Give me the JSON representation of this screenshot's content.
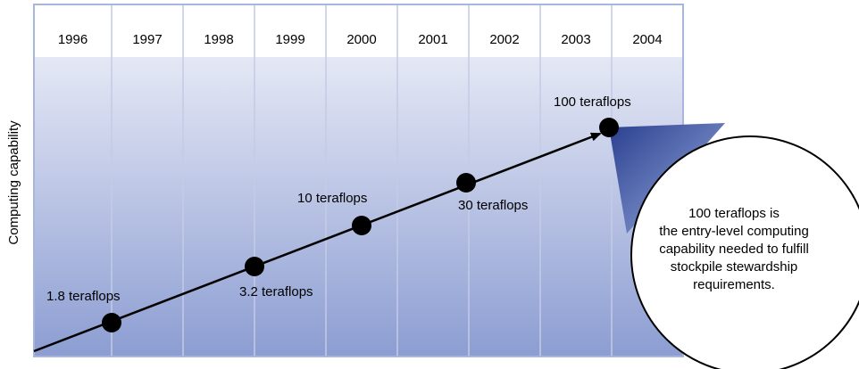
{
  "y_axis_label": "Computing capability",
  "years": [
    "1996",
    "1997",
    "1998",
    "1999",
    "2000",
    "2001",
    "2002",
    "2003",
    "2004"
  ],
  "milestones": [
    {
      "label": "1.8 teraflops"
    },
    {
      "label": "3.2 teraflops"
    },
    {
      "label": "10 teraflops"
    },
    {
      "label": "30 teraflops"
    },
    {
      "label": "100 teraflops"
    }
  ],
  "callout": {
    "lines": [
      "100 teraflops  is",
      "the entry-level computing",
      "capability needed to fulfill",
      "stockpile stewardship",
      "requirements."
    ]
  }
}
